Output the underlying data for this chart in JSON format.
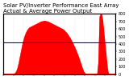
{
  "title": "Solar PV/Inverter Performance East Array Actual & Average Power Output",
  "bg_color": "#ffffff",
  "plot_bg_color": "#ffffff",
  "grid_color": "#cccccc",
  "fill_color": "#ff0000",
  "line_color": "#ff0000",
  "avg_line_color": "#0000ff",
  "avg_value": 0.52,
  "y_points": [
    0,
    0,
    0,
    0,
    0,
    0,
    0,
    0,
    0,
    0,
    0.02,
    0.05,
    0.1,
    0.18,
    0.28,
    0.38,
    0.48,
    0.56,
    0.63,
    0.68,
    0.72,
    0.75,
    0.77,
    0.78,
    0.79,
    0.8,
    0.81,
    0.82,
    0.83,
    0.84,
    0.85,
    0.86,
    0.87,
    0.87,
    0.88,
    0.88,
    0.87,
    0.87,
    0.86,
    0.85,
    0.84,
    0.83,
    0.82,
    0.81,
    0.8,
    0.79,
    0.78,
    0.77,
    0.76,
    0.75,
    0.74,
    0.72,
    0.7,
    0.68,
    0.65,
    0.62,
    0.59,
    0.55,
    0.51,
    0.47,
    0.43,
    0.38,
    0.33,
    0.28,
    0.22,
    0.16,
    0.1,
    0.05,
    0.02,
    0,
    0,
    0,
    0,
    0,
    0,
    0,
    0,
    0,
    0,
    0,
    0.2,
    0.95,
    1.0,
    0.9,
    0.7,
    0.5,
    0.3,
    0.1,
    0,
    0,
    0,
    0,
    0,
    0,
    0
  ],
  "ylim": [
    0,
    1.0
  ],
  "title_fontsize": 5,
  "axis_fontsize": 3.5,
  "ylabel_scale": 800,
  "yticks": [
    0,
    100,
    200,
    300,
    400,
    500,
    600,
    700,
    800
  ]
}
